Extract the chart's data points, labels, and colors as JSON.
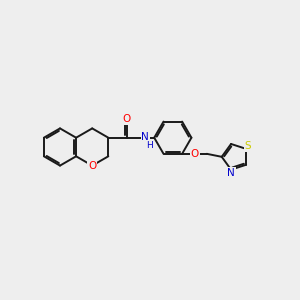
{
  "background_color": "#eeeeee",
  "bond_color": "#1a1a1a",
  "atom_colors": {
    "O": "#ff0000",
    "N": "#0000cc",
    "S": "#cccc00",
    "C": "#1a1a1a",
    "H": "#1a1a1a"
  },
  "lw": 1.4,
  "doff": 0.055,
  "r_hex": 0.62,
  "r_thz": 0.48
}
